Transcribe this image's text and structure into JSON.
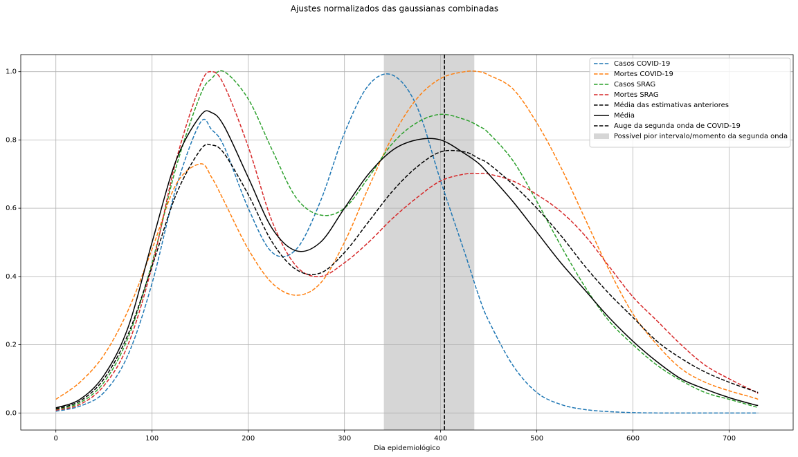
{
  "chart_data": {
    "type": "line",
    "title": "Ajustes normalizados das gaussianas combinadas",
    "x_label": "Dia epidemiológico",
    "x": [
      0,
      25,
      50,
      75,
      100,
      125,
      150,
      162,
      175,
      200,
      225,
      250,
      275,
      300,
      325,
      350,
      375,
      400,
      425,
      440,
      450,
      475,
      500,
      525,
      550,
      575,
      600,
      625,
      650,
      675,
      700,
      725,
      730
    ],
    "series": [
      {
        "name": "Casos COVID-19",
        "color": "#1f77b4",
        "linestyle": "dashed",
        "values": [
          0.005,
          0.02,
          0.06,
          0.17,
          0.38,
          0.66,
          0.85,
          0.83,
          0.78,
          0.6,
          0.47,
          0.48,
          0.62,
          0.82,
          0.96,
          0.99,
          0.9,
          0.68,
          0.47,
          0.34,
          0.27,
          0.14,
          0.06,
          0.025,
          0.01,
          0.004,
          0.001,
          0,
          0,
          0,
          0,
          0,
          0
        ]
      },
      {
        "name": "Mortes COVID-19",
        "color": "#ff7f0e",
        "linestyle": "dashed",
        "values": [
          0.04,
          0.09,
          0.17,
          0.3,
          0.48,
          0.67,
          0.73,
          0.69,
          0.62,
          0.48,
          0.38,
          0.345,
          0.38,
          0.5,
          0.66,
          0.81,
          0.92,
          0.98,
          1.0,
          1.0,
          0.99,
          0.95,
          0.85,
          0.72,
          0.57,
          0.42,
          0.29,
          0.2,
          0.13,
          0.09,
          0.065,
          0.045,
          0.04
        ]
      },
      {
        "name": "Casos SRAG",
        "color": "#2ca02c",
        "linestyle": "dashed",
        "values": [
          0.01,
          0.03,
          0.09,
          0.22,
          0.44,
          0.72,
          0.93,
          0.98,
          1.0,
          0.92,
          0.77,
          0.63,
          0.58,
          0.6,
          0.69,
          0.79,
          0.85,
          0.875,
          0.86,
          0.84,
          0.82,
          0.74,
          0.62,
          0.49,
          0.37,
          0.27,
          0.2,
          0.14,
          0.095,
          0.06,
          0.04,
          0.02,
          0.015
        ]
      },
      {
        "name": "Mortes SRAG",
        "color": "#d62728",
        "linestyle": "dashed",
        "values": [
          0.008,
          0.025,
          0.08,
          0.2,
          0.43,
          0.74,
          0.96,
          1.0,
          0.96,
          0.78,
          0.56,
          0.43,
          0.4,
          0.44,
          0.5,
          0.57,
          0.63,
          0.68,
          0.7,
          0.702,
          0.7,
          0.68,
          0.64,
          0.59,
          0.52,
          0.43,
          0.34,
          0.27,
          0.2,
          0.14,
          0.1,
          0.065,
          0.057
        ]
      },
      {
        "name": "Média das estimativas anteriores",
        "color": "#000000",
        "linestyle": "dashed",
        "values": [
          0.012,
          0.035,
          0.1,
          0.23,
          0.43,
          0.64,
          0.77,
          0.785,
          0.76,
          0.64,
          0.5,
          0.42,
          0.41,
          0.47,
          0.56,
          0.65,
          0.72,
          0.765,
          0.765,
          0.745,
          0.73,
          0.67,
          0.6,
          0.52,
          0.43,
          0.35,
          0.28,
          0.21,
          0.16,
          0.12,
          0.09,
          0.065,
          0.06
        ]
      },
      {
        "name": "Média",
        "color": "#000000",
        "linestyle": "solid",
        "values": [
          0.015,
          0.04,
          0.11,
          0.25,
          0.5,
          0.74,
          0.87,
          0.88,
          0.84,
          0.69,
          0.54,
          0.475,
          0.5,
          0.6,
          0.7,
          0.77,
          0.8,
          0.8,
          0.76,
          0.73,
          0.7,
          0.62,
          0.53,
          0.44,
          0.36,
          0.28,
          0.21,
          0.15,
          0.1,
          0.07,
          0.045,
          0.025,
          0.022
        ]
      }
    ],
    "vlines": [
      {
        "name": "Auge da segunda onda de COVID-19",
        "x": 404,
        "color": "#000000",
        "linestyle": "dashed"
      }
    ],
    "spans": [
      {
        "name": "Possível pior intervalo/momento da segunda onda",
        "x0": 341,
        "x1": 435,
        "color": "#d6d6d6"
      }
    ],
    "xlim": [
      -36.5,
      766.5
    ],
    "ylim": [
      -0.05,
      1.05
    ],
    "xticks": [
      0,
      100,
      200,
      300,
      400,
      500,
      600,
      700
    ],
    "yticks": [
      {
        "value": 0,
        "label": "0.0"
      },
      {
        "value": 0.2,
        "label": "0.2"
      },
      {
        "value": 0.4,
        "label": "0.4"
      },
      {
        "value": 0.6,
        "label": "0.6"
      },
      {
        "value": 0.8,
        "label": "0.8"
      },
      {
        "value": 1.0,
        "label": "1.0"
      }
    ],
    "grid": true,
    "legend": "upper right"
  }
}
